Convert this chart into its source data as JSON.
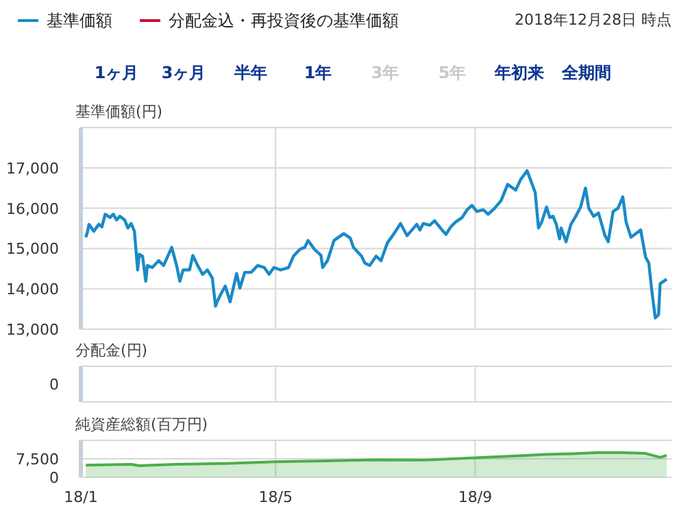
{
  "chart_data": [
    {
      "type": "other",
      "categories": [
        "1ヶ月",
        "3ヶ月",
        "半年",
        "1年",
        "3年",
        "5年",
        "年初来",
        "全期間"
      ],
      "colors": [
        "#0d3591",
        "#0d3591",
        "#0d3591",
        "#0d3591",
        "#c8c8c8",
        "#c8c8c8",
        "#0d3591",
        "#0d3591"
      ]
    },
    {
      "type": "line",
      "ylabel": "基準価額(円)",
      "grid": true,
      "legend": "top",
      "tick_labels": "y",
      "annotations": [
        "2018年12月28日 時点"
      ],
      "xlim": [
        "2018-01-01",
        "2018-12-31"
      ],
      "xticks": [
        {
          "value": "2018-01-01",
          "label": null
        },
        {
          "value": "2018-05-01",
          "label": null
        },
        {
          "value": "2018-09-01",
          "label": null
        }
      ],
      "ylim": [
        13000,
        18000
      ],
      "yticks": [
        {
          "value": 13000,
          "label": "13,000"
        },
        {
          "value": 14000,
          "label": "14,000"
        },
        {
          "value": 15000,
          "label": "15,000"
        },
        {
          "value": 16000,
          "label": "16,000"
        },
        {
          "value": 17000,
          "label": "17,000"
        }
      ],
      "x": [
        "2018-01-04",
        "2018-01-05",
        "2018-01-06",
        "2018-01-09",
        "2018-01-12",
        "2018-01-14",
        "2018-01-16",
        "2018-01-19",
        "2018-01-21",
        "2018-01-23",
        "2018-01-25",
        "2018-01-28",
        "2018-01-30",
        "2018-02-01",
        "2018-02-03",
        "2018-02-05",
        "2018-02-06",
        "2018-02-08",
        "2018-02-10",
        "2018-02-11",
        "2018-02-14",
        "2018-02-18",
        "2018-02-21",
        "2018-02-26",
        "2018-03-01",
        "2018-03-03",
        "2018-03-05",
        "2018-03-09",
        "2018-03-11",
        "2018-03-14",
        "2018-03-17",
        "2018-03-20",
        "2018-03-23",
        "2018-03-25",
        "2018-03-26",
        "2018-03-28",
        "2018-03-31",
        "2018-04-03",
        "2018-04-07",
        "2018-04-09",
        "2018-04-12",
        "2018-04-16",
        "2018-04-20",
        "2018-04-24",
        "2018-04-27",
        "2018-04-30",
        "2018-05-04",
        "2018-05-09",
        "2018-05-12",
        "2018-05-16",
        "2018-05-19",
        "2018-05-21",
        "2018-05-25",
        "2018-05-29",
        "2018-05-30",
        "2018-06-02",
        "2018-06-06",
        "2018-06-12",
        "2018-06-16",
        "2018-06-18",
        "2018-06-23",
        "2018-06-25",
        "2018-06-28",
        "2018-07-02",
        "2018-07-05",
        "2018-07-09",
        "2018-07-13",
        "2018-07-17",
        "2018-07-21",
        "2018-07-27",
        "2018-07-29",
        "2018-07-31",
        "2018-08-04",
        "2018-08-07",
        "2018-08-11",
        "2018-08-14",
        "2018-08-17",
        "2018-08-20",
        "2018-08-24",
        "2018-08-27",
        "2018-08-30",
        "2018-09-02",
        "2018-09-06",
        "2018-09-09",
        "2018-09-13",
        "2018-09-17",
        "2018-09-21",
        "2018-09-26",
        "2018-09-29",
        "2018-10-03",
        "2018-10-07",
        "2018-10-08",
        "2018-10-10",
        "2018-10-12",
        "2018-10-15",
        "2018-10-17",
        "2018-10-19",
        "2018-10-21",
        "2018-10-23",
        "2018-10-24",
        "2018-10-27",
        "2018-10-30",
        "2018-11-02",
        "2018-11-05",
        "2018-11-08",
        "2018-11-10",
        "2018-11-13",
        "2018-11-16",
        "2018-11-20",
        "2018-11-22",
        "2018-11-25",
        "2018-11-28",
        "2018-12-01",
        "2018-12-03",
        "2018-12-06",
        "2018-12-12",
        "2018-12-15",
        "2018-12-17",
        "2018-12-19",
        "2018-12-21",
        "2018-12-23",
        "2018-12-24",
        "2018-12-28"
      ],
      "series": [
        {
          "name": "基準価額",
          "color": "#1a8ac6",
          "values": [
            15280,
            15400,
            15600,
            15430,
            15600,
            15540,
            15850,
            15770,
            15850,
            15710,
            15800,
            15710,
            15510,
            15620,
            15430,
            14470,
            14860,
            14810,
            14190,
            14580,
            14530,
            14700,
            14580,
            15030,
            14580,
            14190,
            14470,
            14470,
            14830,
            14580,
            14360,
            14470,
            14270,
            13570,
            13680,
            13850,
            14070,
            13680,
            14380,
            14020,
            14410,
            14410,
            14580,
            14530,
            14360,
            14530,
            14470,
            14530,
            14810,
            14980,
            15030,
            15200,
            14980,
            14830,
            14530,
            14700,
            15200,
            15370,
            15260,
            15030,
            14810,
            14640,
            14580,
            14810,
            14700,
            15150,
            15370,
            15620,
            15320,
            15600,
            15460,
            15620,
            15580,
            15690,
            15490,
            15350,
            15540,
            15660,
            15770,
            15960,
            16070,
            15920,
            15960,
            15850,
            16000,
            16190,
            16590,
            16450,
            16710,
            16930,
            16500,
            16390,
            15510,
            15660,
            16030,
            15770,
            15800,
            15600,
            15240,
            15510,
            15170,
            15600,
            15800,
            16030,
            16500,
            16000,
            15800,
            15880,
            15320,
            15170,
            15920,
            16000,
            16280,
            15660,
            15280,
            15460,
            14790,
            14640,
            13900,
            13280,
            13360,
            14130,
            14240
          ]
        },
        {
          "name": "分配金込・再投資後の基準価額",
          "color": "#c8102e",
          "values": [
            null,
            null,
            null,
            null,
            null,
            null,
            null,
            null,
            null,
            null,
            null,
            null,
            null,
            null,
            null,
            null,
            null,
            null,
            null,
            null,
            null,
            null,
            null,
            null,
            null,
            null,
            null,
            null,
            null,
            null,
            null,
            null,
            null,
            null,
            null,
            null,
            null,
            null,
            null,
            null,
            null,
            null,
            null,
            null,
            null,
            null,
            null,
            null,
            null,
            null,
            null,
            null,
            null,
            null,
            null,
            null,
            null,
            null,
            null,
            null,
            null,
            null,
            null,
            null,
            null,
            null,
            null,
            null,
            null,
            null,
            null,
            null,
            null,
            null,
            null,
            null,
            null,
            null,
            null,
            null,
            null,
            null,
            null,
            null,
            null,
            null,
            null,
            null,
            null,
            null,
            null,
            null,
            null,
            null,
            null,
            null,
            null,
            null,
            null,
            null,
            null,
            null,
            null,
            null,
            null,
            null,
            null,
            null,
            null,
            null,
            null,
            null,
            null,
            null,
            null,
            null,
            null,
            null,
            null,
            null,
            null,
            null,
            null
          ]
        }
      ]
    },
    {
      "type": "other",
      "ylabel": "分配金(円)",
      "annotations": [
        "0"
      ]
    },
    {
      "type": "area",
      "ylabel": "純資産総額(百万円)",
      "grid": true,
      "color": "#4cae4c",
      "xlim": [
        "2018-01-01",
        "2018-12-31"
      ],
      "xticks": [
        {
          "value": "2018-01-01",
          "label": "18/1"
        },
        {
          "value": "2018-05-01",
          "label": "18/5"
        },
        {
          "value": "2018-09-01",
          "label": "18/9"
        }
      ],
      "ylim": [
        0,
        15000
      ],
      "yticks": [
        0,
        {
          "value": 7500,
          "label": "7,500"
        }
      ],
      "x": [
        "2018-01-04",
        "2018-02-01",
        "2018-02-06",
        "2018-03-01",
        "2018-04-01",
        "2018-05-01",
        "2018-06-01",
        "2018-07-01",
        "2018-08-01",
        "2018-09-01",
        "2018-10-01",
        "2018-10-15",
        "2018-11-01",
        "2018-11-15",
        "2018-12-01",
        "2018-12-15",
        "2018-12-24",
        "2018-12-28"
      ],
      "values": [
        4900,
        5300,
        4700,
        5300,
        5600,
        6300,
        6700,
        7100,
        7000,
        7900,
        8800,
        9300,
        9600,
        10000,
        10000,
        9700,
        8100,
        8900
      ]
    }
  ]
}
